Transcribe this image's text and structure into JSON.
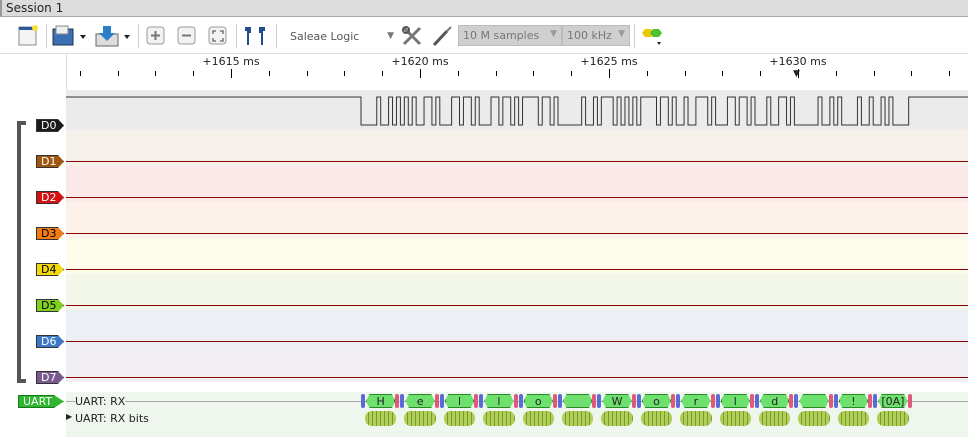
{
  "window": {
    "session_tab": "Session 1"
  },
  "toolbar": {
    "device": "Saleae Logic",
    "samples": "10 M samples",
    "rate": "100 kHz",
    "icons": [
      "new-session-icon",
      "open-icon",
      "save-icon",
      "zoom-in-icon",
      "zoom-out-icon",
      "zoom-fit-icon",
      "markers-icon",
      "device-settings-icon",
      "probe-icon",
      "analyzer-icon"
    ]
  },
  "ruler": {
    "labels": [
      "+1615 ms",
      "+1620 ms",
      "+1625 ms",
      "+1630 ms"
    ],
    "major_ms": [
      1615,
      1620,
      1625,
      1630
    ],
    "minor_step_ms": 1
  },
  "channels": [
    {
      "label": "D0",
      "color": "#1a1a1a",
      "text": "#fff",
      "band": "#ebebeb"
    },
    {
      "label": "D1",
      "color": "#a0560c",
      "text": "#fff",
      "band": "#f5f0ea"
    },
    {
      "label": "D2",
      "color": "#d41010",
      "text": "#fff",
      "band": "#fbe9e9"
    },
    {
      "label": "D3",
      "color": "#f47a12",
      "text": "#000",
      "band": "#fdf2ea"
    },
    {
      "label": "D4",
      "color": "#f3d90c",
      "text": "#000",
      "band": "#fdfbea"
    },
    {
      "label": "D5",
      "color": "#80d020",
      "text": "#000",
      "band": "#f2f7ea"
    },
    {
      "label": "D6",
      "color": "#3b78c6",
      "text": "#fff",
      "band": "#ecf0f6"
    },
    {
      "label": "D7",
      "color": "#7a5a8e",
      "text": "#fff",
      "band": "#f1eff4"
    }
  ],
  "analyzer": {
    "label": "UART",
    "color": "#2fb52f",
    "rows": [
      "UART: RX",
      "UART: RX bits"
    ],
    "frames": [
      "H",
      "e",
      "l",
      "l",
      "o",
      "",
      "W",
      "o",
      "r",
      "l",
      "d",
      "",
      "!",
      "[0A]"
    ],
    "byte_values": [
      72,
      101,
      108,
      108,
      111,
      32,
      87,
      111,
      114,
      108,
      100,
      32,
      33,
      10
    ]
  }
}
